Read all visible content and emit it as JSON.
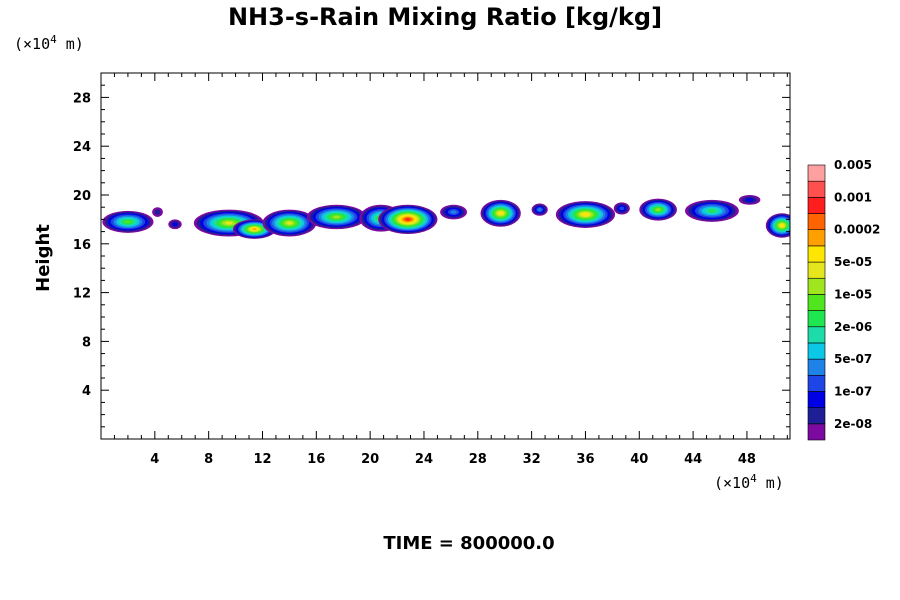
{
  "chart_data": {
    "type": "heatmap",
    "title": "NH3-s-Rain Mixing Ratio [kg/kg]",
    "ylabel": "Height",
    "x_unit": "(×10",
    "x_unit_exp": "4",
    "x_unit_tail": " m)",
    "y_unit": "(×10",
    "y_unit_exp": "4",
    "y_unit_tail": " m)",
    "xlim": [
      0,
      51.2
    ],
    "ylim": [
      0,
      30
    ],
    "xticks": [
      4,
      8,
      12,
      16,
      20,
      24,
      28,
      32,
      36,
      40,
      44,
      48
    ],
    "yticks": [
      4,
      8,
      12,
      16,
      20,
      24,
      28
    ],
    "time_label": "TIME = 800000.0",
    "colorbar": {
      "colors": [
        "#7d0aa0",
        "#1e1e96",
        "#0000e6",
        "#1e46e6",
        "#1e82e6",
        "#0ac8e6",
        "#1edcaa",
        "#1ee650",
        "#50e61e",
        "#a0e61e",
        "#e6e61e",
        "#ffe600",
        "#ffa000",
        "#ff6400",
        "#ff1e1e",
        "#ff5050",
        "#ffa0a0"
      ],
      "labels": [
        "2e-08",
        "1e-07",
        "5e-07",
        "2e-06",
        "1e-05",
        "5e-05",
        "0.0002",
        "0.001",
        "0.005"
      ]
    },
    "blobs": [
      {
        "x": 2.0,
        "y": 17.8,
        "rx": 1.9,
        "ry": 0.9,
        "peak": 8
      },
      {
        "x": 4.2,
        "y": 18.6,
        "rx": 0.4,
        "ry": 0.4,
        "peak": 1
      },
      {
        "x": 5.5,
        "y": 17.6,
        "rx": 0.5,
        "ry": 0.4,
        "peak": 2
      },
      {
        "x": 9.5,
        "y": 17.7,
        "rx": 2.6,
        "ry": 1.1,
        "peak": 10
      },
      {
        "x": 11.4,
        "y": 17.2,
        "rx": 1.6,
        "ry": 0.8,
        "peak": 12
      },
      {
        "x": 14.0,
        "y": 17.7,
        "rx": 2.0,
        "ry": 1.1,
        "peak": 10
      },
      {
        "x": 17.5,
        "y": 18.2,
        "rx": 2.2,
        "ry": 1.0,
        "peak": 9
      },
      {
        "x": 20.8,
        "y": 18.1,
        "rx": 1.6,
        "ry": 1.1,
        "peak": 8
      },
      {
        "x": 22.8,
        "y": 18.0,
        "rx": 2.2,
        "ry": 1.2,
        "peak": 14
      },
      {
        "x": 26.2,
        "y": 18.6,
        "rx": 1.0,
        "ry": 0.6,
        "peak": 4
      },
      {
        "x": 29.7,
        "y": 18.5,
        "rx": 1.5,
        "ry": 1.1,
        "peak": 11
      },
      {
        "x": 32.6,
        "y": 18.8,
        "rx": 0.6,
        "ry": 0.5,
        "peak": 4
      },
      {
        "x": 36.0,
        "y": 18.4,
        "rx": 2.2,
        "ry": 1.1,
        "peak": 11
      },
      {
        "x": 38.7,
        "y": 18.9,
        "rx": 0.6,
        "ry": 0.5,
        "peak": 3
      },
      {
        "x": 41.4,
        "y": 18.8,
        "rx": 1.4,
        "ry": 0.9,
        "peak": 9
      },
      {
        "x": 45.4,
        "y": 18.7,
        "rx": 2.0,
        "ry": 0.9,
        "peak": 7
      },
      {
        "x": 48.2,
        "y": 19.6,
        "rx": 0.8,
        "ry": 0.4,
        "peak": 2
      },
      {
        "x": 50.6,
        "y": 17.5,
        "rx": 1.2,
        "ry": 1.0,
        "peak": 11
      }
    ]
  }
}
